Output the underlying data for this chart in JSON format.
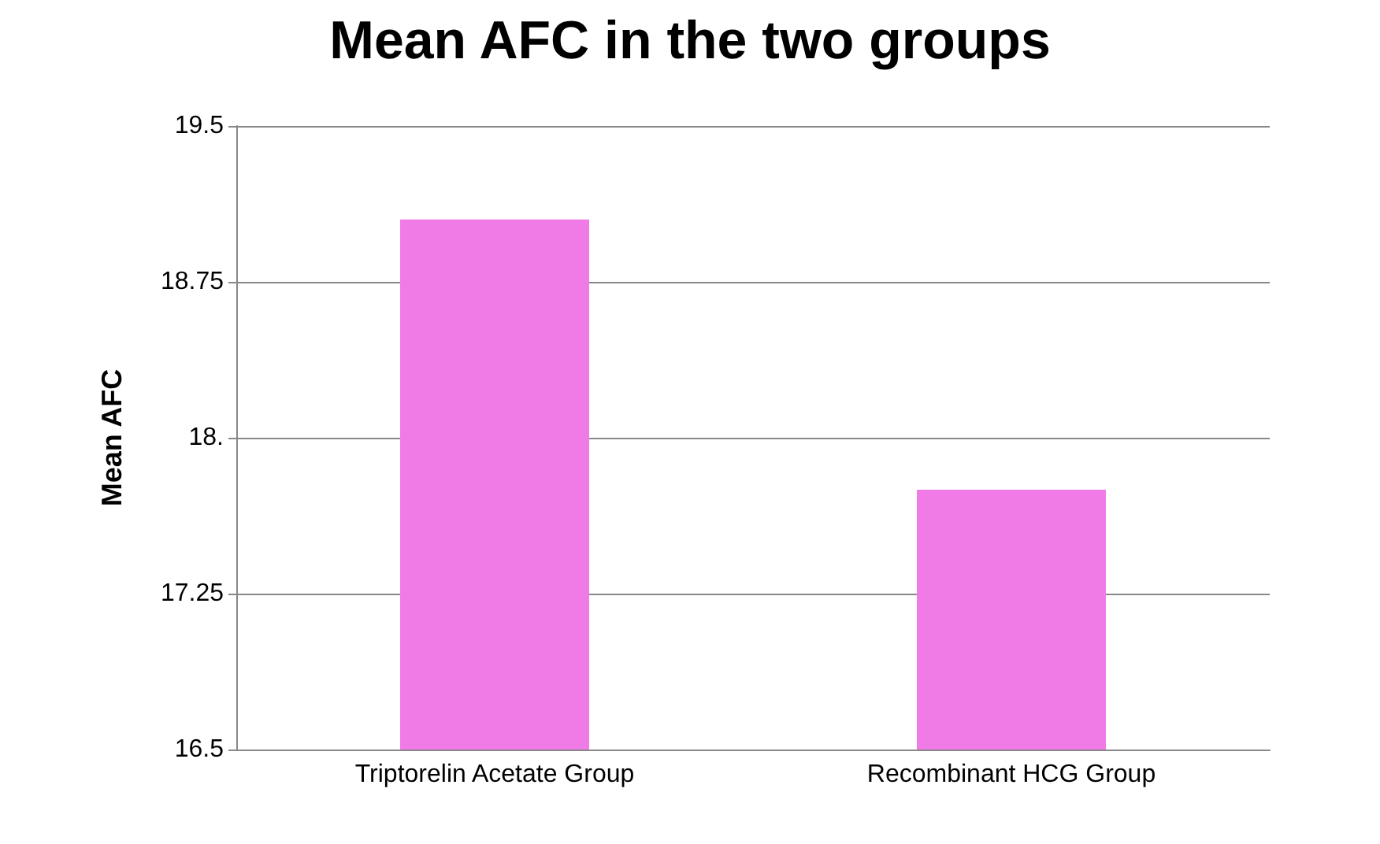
{
  "chart_data": {
    "type": "bar",
    "title": "Mean AFC in the two groups",
    "ylabel": "Mean AFC",
    "categories": [
      "Triptorelin Acetate Group",
      "Recombinant HCG Group"
    ],
    "values": [
      19.05,
      17.75
    ],
    "color": "#f07be6",
    "ylim": [
      16.5,
      19.5
    ],
    "yticks": [
      16.5,
      17.25,
      {
        "value": 18,
        "label": "18."
      },
      18.75,
      19.5
    ],
    "grid": "y"
  }
}
